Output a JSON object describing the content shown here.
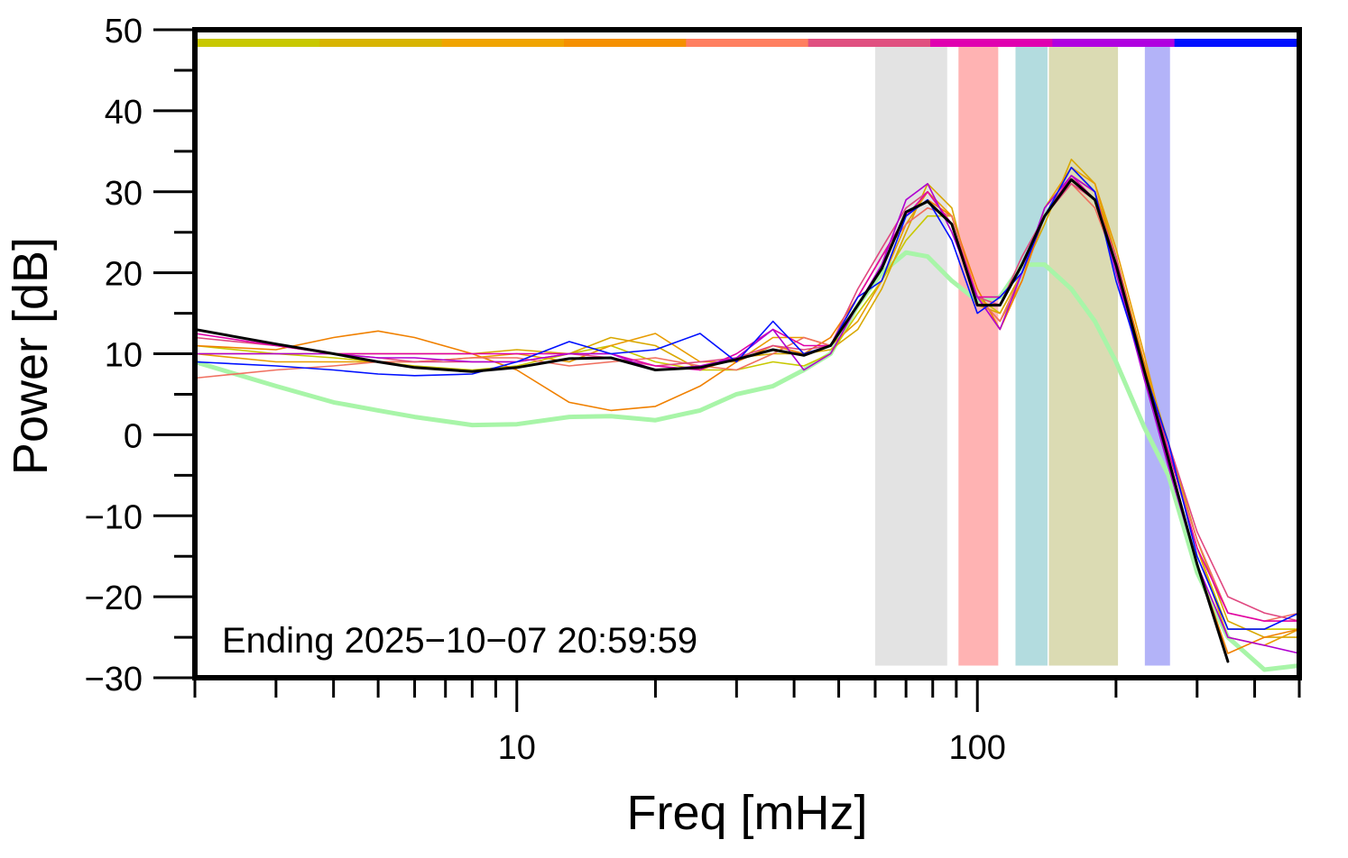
{
  "chart_data": {
    "type": "line",
    "xlabel": "Freq [mHz]",
    "ylabel": "Power [dB]",
    "annotation": "Ending 2025−10−07 20:59:59",
    "xscale": "log",
    "xlim": [
      2,
      500
    ],
    "ylim": [
      -30,
      50
    ],
    "xticks": [
      10,
      100
    ],
    "xminor_ticks": [
      2,
      3,
      4,
      5,
      6,
      7,
      8,
      9,
      20,
      30,
      40,
      50,
      60,
      70,
      80,
      90,
      200,
      300,
      400,
      500
    ],
    "yticks": [
      {
        "value": -30,
        "label": "−30"
      },
      {
        "value": -20,
        "label": "−20"
      },
      {
        "value": -10,
        "label": "−10"
      },
      0,
      10,
      20,
      30,
      40,
      50
    ],
    "yminor_ticks": [
      -25,
      -15,
      -5,
      5,
      15,
      25,
      35,
      45
    ],
    "color_bar": [
      "#c8c800",
      "#d8b400",
      "#f0a400",
      "#f59000",
      "#ff7f60",
      "#e05080",
      "#e000b0",
      "#b000e0",
      "#0010ff"
    ],
    "band_ylim": [
      -28.5,
      48
    ],
    "bands": [
      {
        "x": [
          60,
          86
        ],
        "color": "#e3e3e3"
      },
      {
        "x": [
          91,
          111
        ],
        "color": "#ffb3b3"
      },
      {
        "x": [
          121,
          142
        ],
        "color": "#b3dcdf"
      },
      {
        "x": [
          143,
          202
        ],
        "color": "#dbdbb3"
      },
      {
        "x": [
          231,
          262
        ],
        "color": "#b3b3f8"
      }
    ],
    "x": [
      2,
      3,
      4,
      5,
      6,
      8,
      10,
      13,
      16,
      20,
      25,
      30,
      36,
      42,
      48,
      55,
      62,
      70,
      78,
      88,
      100,
      112,
      125,
      140,
      160,
      180,
      200,
      230,
      260,
      300,
      350,
      420,
      500
    ],
    "series": [
      {
        "color": "#a8f5a8",
        "width": 5,
        "values": [
          9,
          6,
          4,
          3,
          2.2,
          1.2,
          1.3,
          2.2,
          2.3,
          1.8,
          3,
          5,
          6,
          8,
          10,
          16,
          20,
          22.5,
          22,
          19,
          16.5,
          17,
          21,
          21,
          18,
          14,
          9,
          1,
          -5,
          -17,
          -25,
          -29,
          -28.5
        ]
      },
      {
        "color": "#c8c800",
        "width": 1.6,
        "values": [
          11,
          10,
          9.5,
          9,
          8.5,
          8,
          8.5,
          10,
          11,
          9,
          8,
          8,
          9,
          8.5,
          10,
          15,
          19,
          24,
          27,
          27,
          17,
          15,
          20,
          27,
          33,
          30,
          22,
          9,
          -2,
          -14,
          -24,
          -24,
          -24
        ]
      },
      {
        "color": "#d8a800",
        "width": 1.6,
        "values": [
          10,
          10,
          10,
          10,
          10,
          10,
          10.5,
          10,
          12,
          11,
          8,
          9.5,
          10,
          10,
          10.5,
          13,
          18,
          25,
          31,
          28,
          16,
          15,
          20,
          26,
          34,
          31,
          22,
          9,
          -1,
          -13,
          -23,
          -25,
          -25
        ]
      },
      {
        "color": "#e89c00",
        "width": 1.6,
        "values": [
          10,
          9,
          9,
          9,
          9,
          9.5,
          10,
          9,
          11,
          12.5,
          9,
          9,
          12,
          12,
          11,
          14,
          19,
          26,
          30,
          27,
          17,
          14,
          19,
          28,
          33,
          31,
          23,
          10,
          -2,
          -14,
          -25,
          -26,
          -24
        ]
      },
      {
        "color": "#f08000",
        "width": 1.6,
        "values": [
          11,
          10.5,
          12,
          12.8,
          12,
          10,
          8,
          4,
          3,
          3.5,
          6,
          9,
          11,
          10,
          12,
          17,
          22,
          27,
          29,
          27,
          18,
          13,
          19,
          27,
          32,
          30,
          22,
          9,
          -3,
          -16,
          -27,
          -25,
          -24
        ]
      },
      {
        "color": "#f07060",
        "width": 1.6,
        "values": [
          7,
          8,
          8.5,
          9,
          9,
          9.5,
          9.5,
          8.5,
          9,
          9.5,
          8.5,
          8,
          10,
          12,
          11,
          17,
          22,
          26,
          28,
          27,
          17,
          14,
          20,
          27,
          31,
          28,
          21,
          8,
          -2,
          -13,
          -22,
          -23,
          -22
        ]
      },
      {
        "color": "#e04880",
        "width": 1.6,
        "values": [
          12,
          11,
          10,
          9.5,
          9,
          9,
          9,
          10,
          9.5,
          8.5,
          9,
          9.5,
          11,
          10.5,
          11,
          18,
          23,
          28,
          30,
          26,
          17,
          16,
          22,
          27,
          31,
          29,
          22,
          8,
          -1,
          -12,
          -20,
          -22,
          -23
        ]
      },
      {
        "color": "#e000a8",
        "width": 1.6,
        "values": [
          12.5,
          11,
          10,
          10,
          10,
          10,
          10,
          10,
          10,
          8.5,
          8,
          10,
          13,
          11,
          11,
          17,
          22,
          27,
          30,
          26,
          17,
          17,
          20,
          27,
          32,
          29,
          21,
          8,
          -2,
          -14,
          -22,
          -23,
          -23
        ]
      },
      {
        "color": "#b000d0",
        "width": 1.6,
        "values": [
          10,
          10,
          10,
          9.5,
          9.5,
          9,
          9,
          10,
          10,
          8,
          8.5,
          9.5,
          13,
          8,
          10,
          16,
          21,
          29,
          31,
          25,
          17,
          13,
          20,
          28,
          32,
          30,
          20,
          7,
          -4,
          -16,
          -25,
          -26,
          -27
        ]
      },
      {
        "color": "#0010ff",
        "width": 1.6,
        "values": [
          9,
          8.5,
          8,
          7.5,
          7.3,
          7.5,
          9,
          11.5,
          10,
          10.5,
          12.5,
          9,
          14,
          10,
          11,
          17,
          19,
          27,
          29,
          24,
          15,
          17,
          20,
          27,
          33,
          30,
          19,
          8,
          -1,
          -15,
          -24,
          -24,
          -22
        ]
      },
      {
        "color": "#000000",
        "width": 3,
        "values": [
          13,
          11.2,
          10,
          9,
          8.3,
          7.8,
          8.3,
          9.4,
          9.5,
          8,
          8.3,
          9.3,
          10.5,
          9.8,
          11,
          16,
          20.5,
          27.5,
          28.8,
          26,
          16,
          16,
          21,
          27,
          31.5,
          29,
          21,
          8,
          -3,
          -16,
          -28,
          null,
          null
        ]
      }
    ]
  }
}
